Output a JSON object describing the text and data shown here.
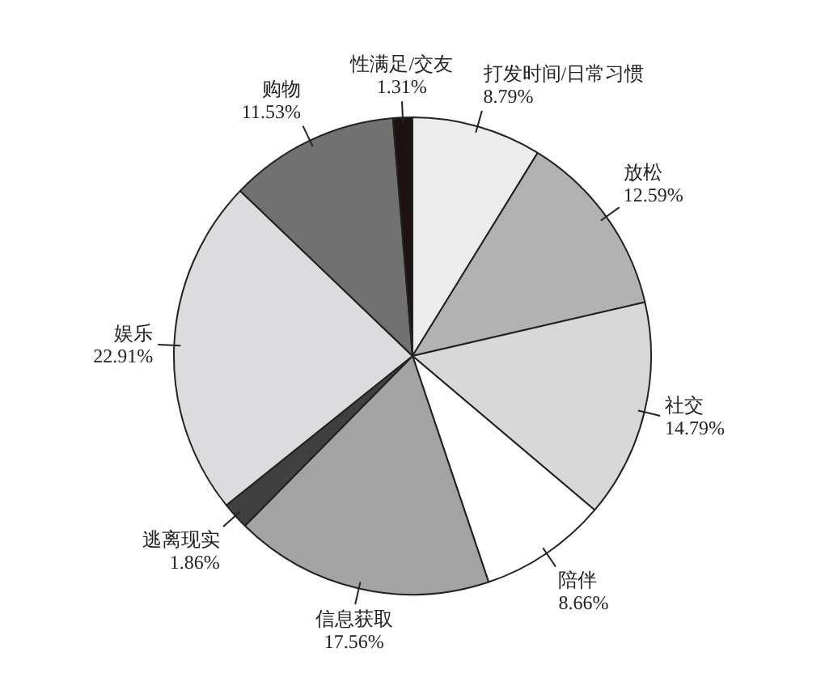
{
  "chart_data": {
    "type": "pie",
    "categories": [
      "打发时间/日常习惯",
      "放松",
      "社交",
      "陪伴",
      "信息获取",
      "逃离现实",
      "娱乐",
      "购物",
      "性满足/交友"
    ],
    "values": [
      8.79,
      12.59,
      14.79,
      8.66,
      17.56,
      1.86,
      22.91,
      11.53,
      1.31
    ],
    "value_labels": [
      "8.79%",
      "12.59%",
      "14.79%",
      "8.66%",
      "17.56%",
      "1.86%",
      "22.91%",
      "11.53%",
      "1.31%"
    ],
    "colors": [
      "#ececec",
      "#b2b2b2",
      "#d8d8d8",
      "#ffffff",
      "#a3a3a3",
      "#404040",
      "#dcdcdf",
      "#717171",
      "#1c1212"
    ],
    "legend": false
  }
}
